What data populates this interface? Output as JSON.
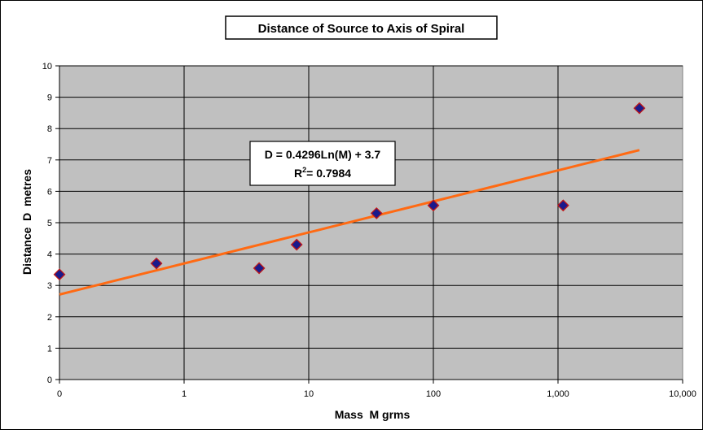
{
  "chart_data": {
    "type": "scatter",
    "title": "Distance of Source to Axis of Spiral",
    "xlabel": "Mass  M grms",
    "ylabel": "Distance  D  metres",
    "x_scale": "log",
    "xlim": [
      0.1,
      10000
    ],
    "ylim": [
      0,
      10
    ],
    "x_ticks": [
      0.1,
      1,
      10,
      100,
      1000,
      10000
    ],
    "x_tick_labels": [
      "0",
      "1",
      "10",
      "100",
      "1,000",
      "10,000"
    ],
    "y_ticks": [
      0,
      1,
      2,
      3,
      4,
      5,
      6,
      7,
      8,
      9,
      10
    ],
    "y_tick_labels": [
      "0",
      "1",
      "2",
      "3",
      "4",
      "5",
      "6",
      "7",
      "8",
      "9",
      "10"
    ],
    "grid": true,
    "legend": "none",
    "series": [
      {
        "x": [
          0.1,
          0.6,
          4,
          8,
          35,
          100,
          1100,
          4500
        ],
        "y": [
          3.35,
          3.7,
          3.55,
          4.3,
          5.3,
          5.55,
          5.55,
          8.65
        ],
        "marker": "diamond",
        "fill_color": "#1a1a8c",
        "edge_color": "#c01818"
      }
    ],
    "trendline": {
      "type": "logarithmic",
      "a": 0.4296,
      "b": 3.7,
      "x_range": [
        0.1,
        4500
      ],
      "color": "#ff6a13",
      "equation_text": "D = 0.4296Ln(M) + 3.7",
      "r2_text": "= 0.7984"
    },
    "colors": {
      "plot_background": "#c0c0c0",
      "grid": "#000000"
    }
  }
}
